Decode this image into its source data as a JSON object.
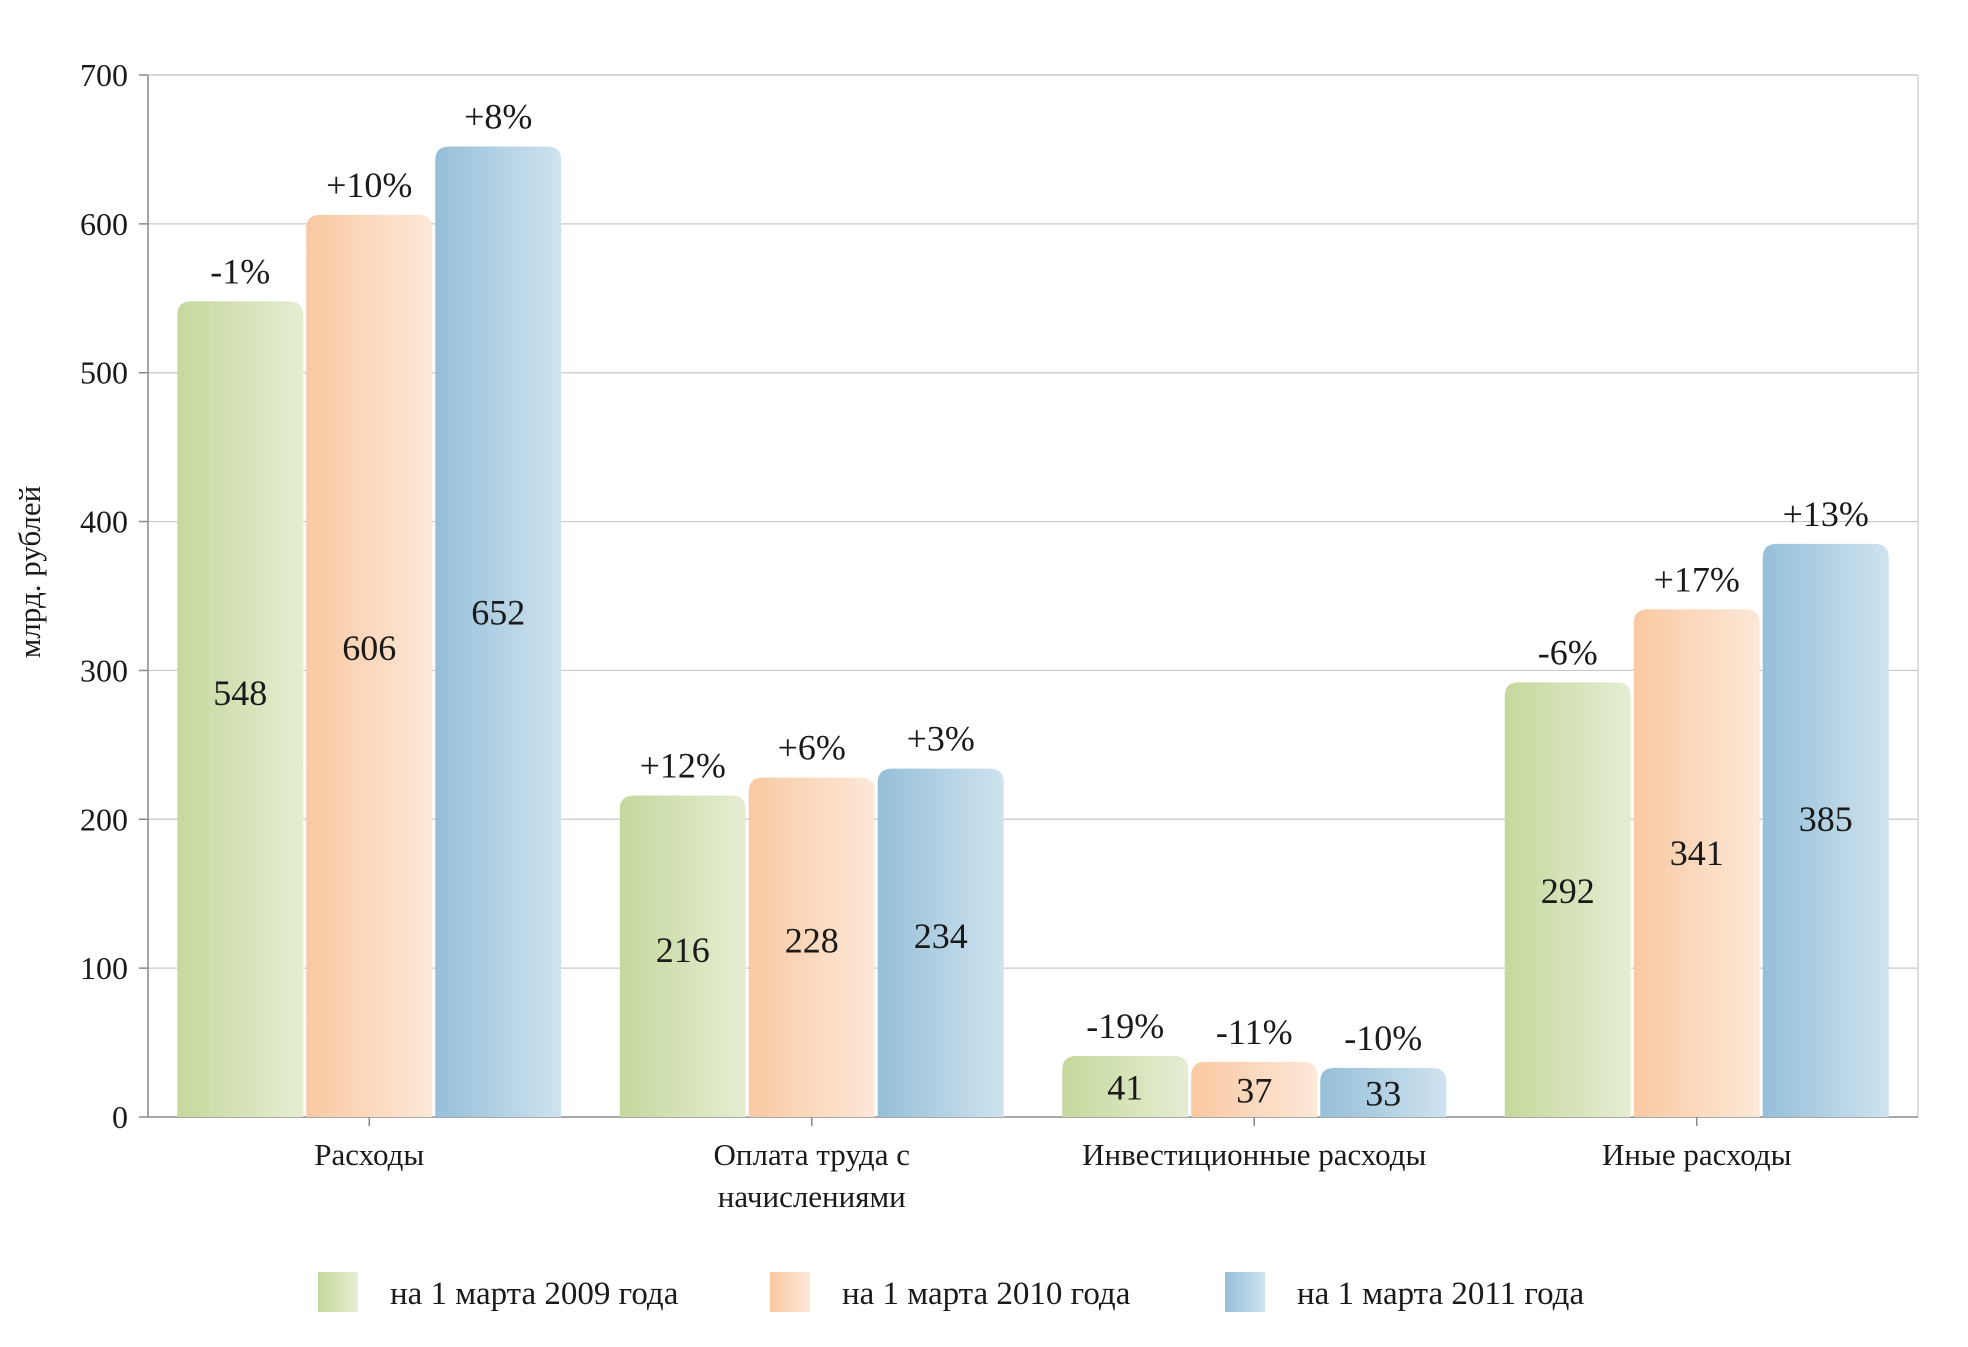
{
  "chart_data": {
    "type": "bar",
    "ylabel": "млрд. рублей",
    "ylim": [
      0,
      700
    ],
    "yticks": [
      0,
      100,
      200,
      300,
      400,
      500,
      600,
      700
    ],
    "grid": true,
    "legend_position": "bottom",
    "categories": [
      [
        "Расходы"
      ],
      [
        "Оплата труда с",
        "начислениями"
      ],
      [
        "Инвестиционные расходы"
      ],
      [
        "Иные расходы"
      ]
    ],
    "series": [
      {
        "name": "на 1 марта 2009 года",
        "color_start": "#c5d89d",
        "color_end": "#e5edd3",
        "values": [
          548,
          216,
          41,
          292
        ],
        "changes": [
          "-1%",
          "+12%",
          "-19%",
          "-6%"
        ]
      },
      {
        "name": "на 1 марта 2010 года",
        "color_start": "#f9c9a2",
        "color_end": "#fde8d8",
        "values": [
          606,
          228,
          37,
          341
        ],
        "changes": [
          "+10%",
          "+6%",
          "-11%",
          "+17%"
        ]
      },
      {
        "name": "на 1 марта 2011 года",
        "color_start": "#95bfd8",
        "color_end": "#cfe3ef",
        "values": [
          652,
          234,
          33,
          385
        ],
        "changes": [
          "+8%",
          "+3%",
          "-10%",
          "+13%"
        ]
      }
    ]
  }
}
